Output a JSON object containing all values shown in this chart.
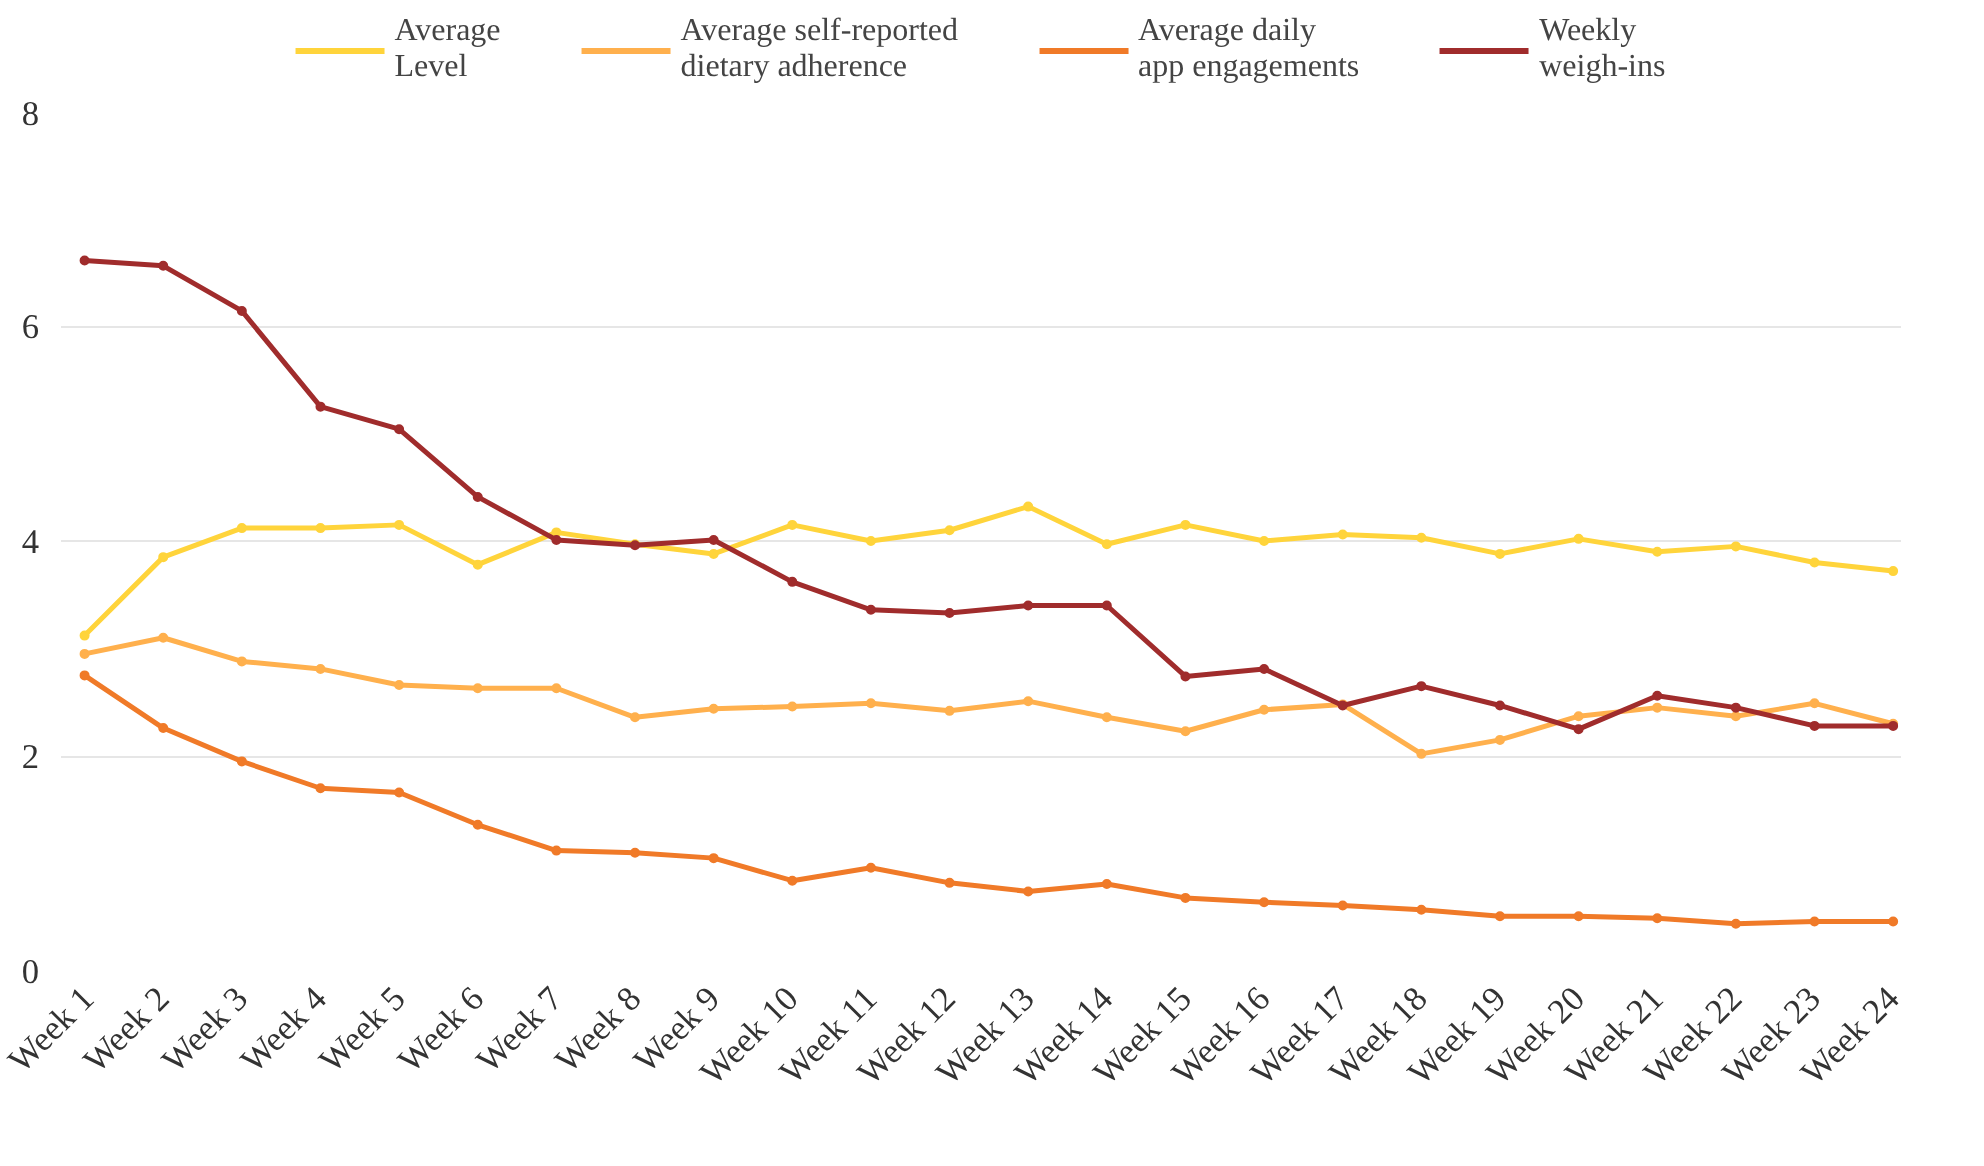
{
  "chart_data": {
    "type": "line",
    "categories": [
      "Week 1",
      "Week 2",
      "Week 3",
      "Week 4",
      "Week 5",
      "Week 6",
      "Week 7",
      "Week 8",
      "Week 9",
      "Week 10",
      "Week 11",
      "Week 12",
      "Week 13",
      "Week 14",
      "Week 15",
      "Week 16",
      "Week 17",
      "Week 18",
      "Week 19",
      "Week 20",
      "Week 21",
      "Week 22",
      "Week 23",
      "Week 24"
    ],
    "series": [
      {
        "name": "Average Level",
        "color": "#ffd43b",
        "values": [
          3.12,
          3.85,
          4.12,
          4.12,
          4.15,
          3.78,
          4.08,
          3.97,
          3.88,
          4.15,
          4.0,
          4.1,
          4.32,
          3.97,
          4.15,
          4.0,
          4.06,
          4.03,
          3.88,
          4.02,
          3.9,
          3.95,
          3.8,
          3.72
        ]
      },
      {
        "name": "Average self-reported dietary adherence",
        "color": "#ffb04d",
        "values": [
          2.95,
          3.1,
          2.88,
          2.81,
          2.66,
          2.63,
          2.63,
          2.36,
          2.44,
          2.46,
          2.49,
          2.42,
          2.51,
          2.36,
          2.23,
          2.43,
          2.48,
          2.02,
          2.15,
          2.37,
          2.45,
          2.37,
          2.49,
          2.3
        ]
      },
      {
        "name": "Average daily app engagements",
        "color": "#f07a28",
        "values": [
          2.75,
          2.26,
          1.95,
          1.7,
          1.66,
          1.36,
          1.12,
          1.1,
          1.05,
          0.84,
          0.96,
          0.82,
          0.74,
          0.81,
          0.68,
          0.64,
          0.61,
          0.57,
          0.51,
          0.51,
          0.49,
          0.44,
          0.46,
          0.46
        ]
      },
      {
        "name": "Weekly weigh-ins",
        "color": "#a02c2c",
        "values": [
          6.61,
          6.56,
          6.14,
          5.25,
          5.04,
          4.41,
          4.01,
          3.96,
          4.01,
          3.62,
          3.36,
          3.33,
          3.4,
          3.4,
          2.74,
          2.81,
          2.47,
          2.65,
          2.47,
          2.25,
          2.56,
          2.45,
          2.28,
          2.28
        ]
      }
    ],
    "ylim": [
      0,
      8
    ],
    "yticks": [
      0,
      2,
      4,
      6,
      8
    ],
    "grid": "y",
    "legend": "top",
    "marker": "circle",
    "line_style": "solid"
  }
}
